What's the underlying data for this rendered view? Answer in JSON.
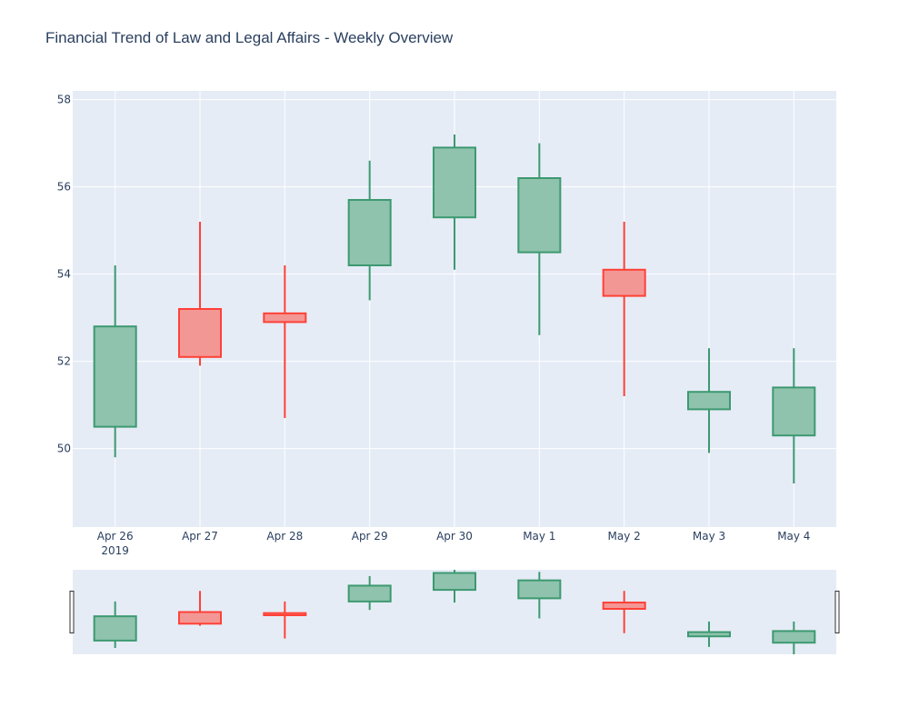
{
  "chart_data": {
    "type": "candlestick",
    "title": "Financial Trend of Law and Legal Affairs - Weekly Overview",
    "x_labels": [
      "Apr 26",
      "Apr 27",
      "Apr 28",
      "Apr 29",
      "Apr 30",
      "May 1",
      "May 2",
      "May 3",
      "May 4"
    ],
    "x_sublabel": "2019",
    "ylim": [
      48.2,
      58.2
    ],
    "y_ticks": [
      50,
      52,
      54,
      56,
      58
    ],
    "grid": true,
    "legend": "none",
    "rangeslider": true,
    "candles": [
      {
        "date": "Apr 26",
        "open": 50.5,
        "high": 54.2,
        "low": 49.8,
        "close": 52.8
      },
      {
        "date": "Apr 27",
        "open": 53.2,
        "high": 55.2,
        "low": 51.9,
        "close": 52.1
      },
      {
        "date": "Apr 28",
        "open": 53.1,
        "high": 54.2,
        "low": 50.7,
        "close": 52.9
      },
      {
        "date": "Apr 29",
        "open": 54.2,
        "high": 56.6,
        "low": 53.4,
        "close": 55.7
      },
      {
        "date": "Apr 30",
        "open": 55.3,
        "high": 57.2,
        "low": 54.1,
        "close": 56.9
      },
      {
        "date": "May 1",
        "open": 54.5,
        "high": 57.0,
        "low": 52.6,
        "close": 56.2
      },
      {
        "date": "May 2",
        "open": 54.1,
        "high": 55.2,
        "low": 51.2,
        "close": 53.5
      },
      {
        "date": "May 3",
        "open": 50.9,
        "high": 52.3,
        "low": 49.9,
        "close": 51.3
      },
      {
        "date": "May 4",
        "open": 50.3,
        "high": 52.3,
        "low": 49.2,
        "close": 51.4
      }
    ],
    "colors": {
      "increasing_line": "#3d9970",
      "increasing_fill": "#8fc3ae",
      "decreasing_line": "#ff4136",
      "decreasing_fill": "#f39795",
      "plot_bg": "#e5ecf6",
      "grid": "#ffffff",
      "text": "#2a3f5f"
    }
  }
}
